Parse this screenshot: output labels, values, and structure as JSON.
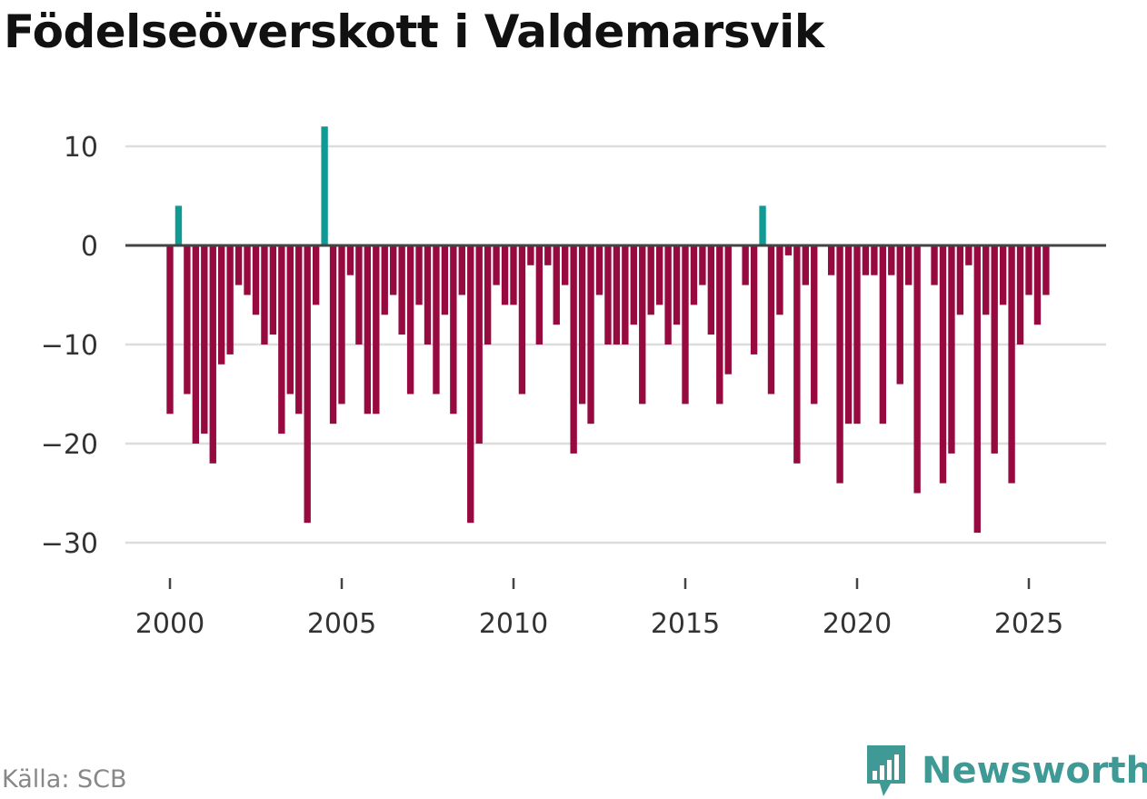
{
  "title": "Födelseöverskott i Valdemarsvik",
  "source": "Källa: SCB",
  "brand": {
    "name": "Newsworthy",
    "icon": "newsworthy-logo-icon",
    "color": "#3f9a96"
  },
  "colors": {
    "positive": "#0f9a94",
    "negative": "#960a3f",
    "grid": "#dddddd",
    "zero_line": "#444444",
    "text": "#333333"
  },
  "chart_data": {
    "type": "bar",
    "title": "Födelseöverskott i Valdemarsvik",
    "xlabel": "",
    "ylabel": "",
    "frequency": "quarterly",
    "start": [
      2000,
      1
    ],
    "xlim": [
      1999.5,
      2028.3
    ],
    "ylim": [
      -32,
      13
    ],
    "yticks": [
      10,
      0,
      -10,
      -20,
      -30
    ],
    "ytick_labels": [
      "10",
      "0",
      "−10",
      "−20",
      "−30"
    ],
    "xticks": [
      2000,
      2005,
      2010,
      2015,
      2020,
      2025
    ],
    "xtick_labels": [
      "2000",
      "2005",
      "2010",
      "2015",
      "2020",
      "2025"
    ],
    "values": [
      -17,
      4,
      -15,
      -20,
      -19,
      -22,
      -12,
      -11,
      -4,
      -5,
      -7,
      -10,
      -9,
      -19,
      -15,
      -17,
      -28,
      -6,
      12,
      -18,
      -16,
      -3,
      -10,
      -17,
      -17,
      -7,
      -5,
      -9,
      -15,
      -6,
      -10,
      -15,
      -7,
      -17,
      -5,
      -28,
      -20,
      -10,
      -4,
      -6,
      -6,
      -15,
      -2,
      -10,
      -2,
      -8,
      -4,
      -21,
      -16,
      -18,
      -5,
      -10,
      -10,
      -10,
      -8,
      -16,
      -7,
      -6,
      -10,
      -8,
      -16,
      -6,
      -4,
      -9,
      -16,
      -13,
      0,
      -4,
      -11,
      4,
      -15,
      -7,
      -1,
      -22,
      -4,
      -16,
      0,
      -3,
      -24,
      -18,
      -18,
      -3,
      -3,
      -18,
      -3,
      -14,
      -4,
      -25,
      0,
      -4,
      -24,
      -21,
      -7,
      -2,
      -29,
      -7,
      -21,
      -6,
      -24,
      -10,
      -5,
      -8,
      -5
    ]
  }
}
